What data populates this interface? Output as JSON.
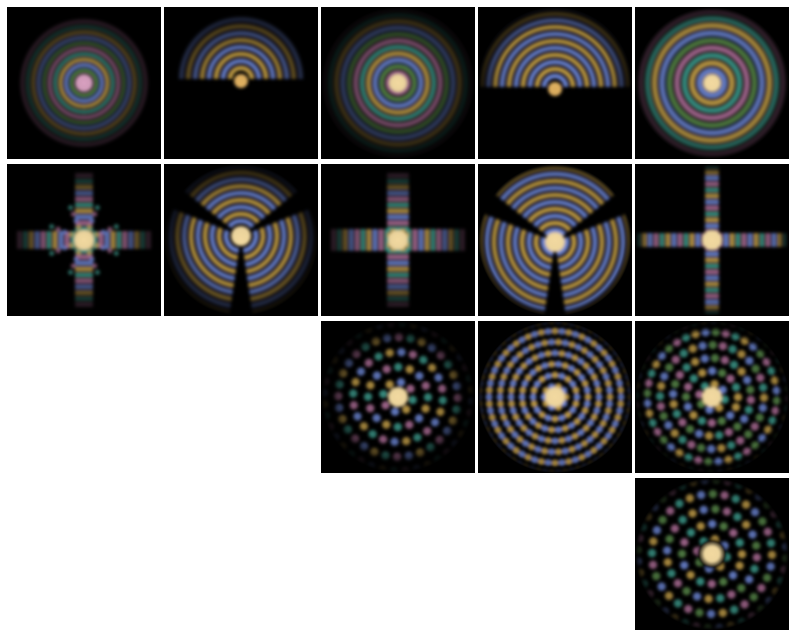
{
  "figure": {
    "background": "#ffffff",
    "tile_background": "#000000",
    "rows": 4,
    "columns": 5,
    "palette": {
      "gold": "#c8a24a",
      "blue": "#6f88d8",
      "magenta": "#b0709a",
      "teal": "#3f9c8e",
      "green": "#5a8a4a",
      "cream": "#f2d9a0"
    },
    "tiles": [
      {
        "row": 0,
        "col": 0,
        "pattern": "rings",
        "palette": [
          "#b0709a",
          "#3f9c8e",
          "#c8a24a",
          "#6f88d8",
          "#5a8a4a"
        ],
        "center": "#d8a0c0"
      },
      {
        "row": 0,
        "col": 1,
        "pattern": "arcs-offset",
        "palette": [
          "#6f88d8",
          "#c8a24a"
        ],
        "center": "#e0b060"
      },
      {
        "row": 0,
        "col": 2,
        "pattern": "rings-wide",
        "palette": [
          "#b0709a",
          "#3f9c8e",
          "#c8a24a",
          "#6f88d8",
          "#5a8a4a"
        ],
        "center": "#f2d9a0"
      },
      {
        "row": 0,
        "col": 3,
        "pattern": "arcs-offset-large",
        "palette": [
          "#6f88d8",
          "#c8a24a"
        ],
        "center": "#e0b060"
      },
      {
        "row": 0,
        "col": 4,
        "pattern": "rings-full",
        "palette": [
          "#b0709a",
          "#3f9c8e",
          "#c8a24a",
          "#6f88d8",
          "#5a8a4a"
        ],
        "center": "#f2d9a0"
      },
      {
        "row": 1,
        "col": 0,
        "pattern": "star-4",
        "palette": [
          "#b0709a",
          "#3f9c8e",
          "#c8a24a",
          "#6f88d8"
        ],
        "center": "#f2d9a0"
      },
      {
        "row": 1,
        "col": 1,
        "pattern": "tri-arcs",
        "palette": [
          "#6f88d8",
          "#c8a24a"
        ],
        "center": "#f2d9a0"
      },
      {
        "row": 1,
        "col": 2,
        "pattern": "cross-blocky",
        "palette": [
          "#b0709a",
          "#3f9c8e",
          "#c8a24a",
          "#6f88d8"
        ],
        "center": "#f2d9a0"
      },
      {
        "row": 1,
        "col": 3,
        "pattern": "tri-arcs-large",
        "palette": [
          "#6f88d8",
          "#c8a24a"
        ],
        "center": "#f2d9a0"
      },
      {
        "row": 1,
        "col": 4,
        "pattern": "cross-thin",
        "palette": [
          "#b0709a",
          "#3f9c8e",
          "#c8a24a",
          "#6f88d8"
        ],
        "center": "#f2d9a0"
      },
      {
        "row": 2,
        "col": 2,
        "pattern": "lattice-round",
        "palette": [
          "#b0709a",
          "#3f9c8e",
          "#c8a24a",
          "#6f88d8"
        ],
        "center": "#f2d9a0"
      },
      {
        "row": 2,
        "col": 3,
        "pattern": "lattice-penta",
        "palette": [
          "#6f88d8",
          "#c8a24a"
        ],
        "center": "#f2d9a0"
      },
      {
        "row": 2,
        "col": 4,
        "pattern": "lattice-dense",
        "palette": [
          "#b0709a",
          "#3f9c8e",
          "#c8a24a",
          "#6f88d8",
          "#5a8a4a"
        ],
        "center": "#f2d9a0"
      },
      {
        "row": 3,
        "col": 4,
        "pattern": "lattice-ring",
        "palette": [
          "#b0709a",
          "#3f9c8e",
          "#c8a24a",
          "#6f88d8",
          "#5a8a4a"
        ],
        "center": "#f2d9a0"
      }
    ]
  }
}
